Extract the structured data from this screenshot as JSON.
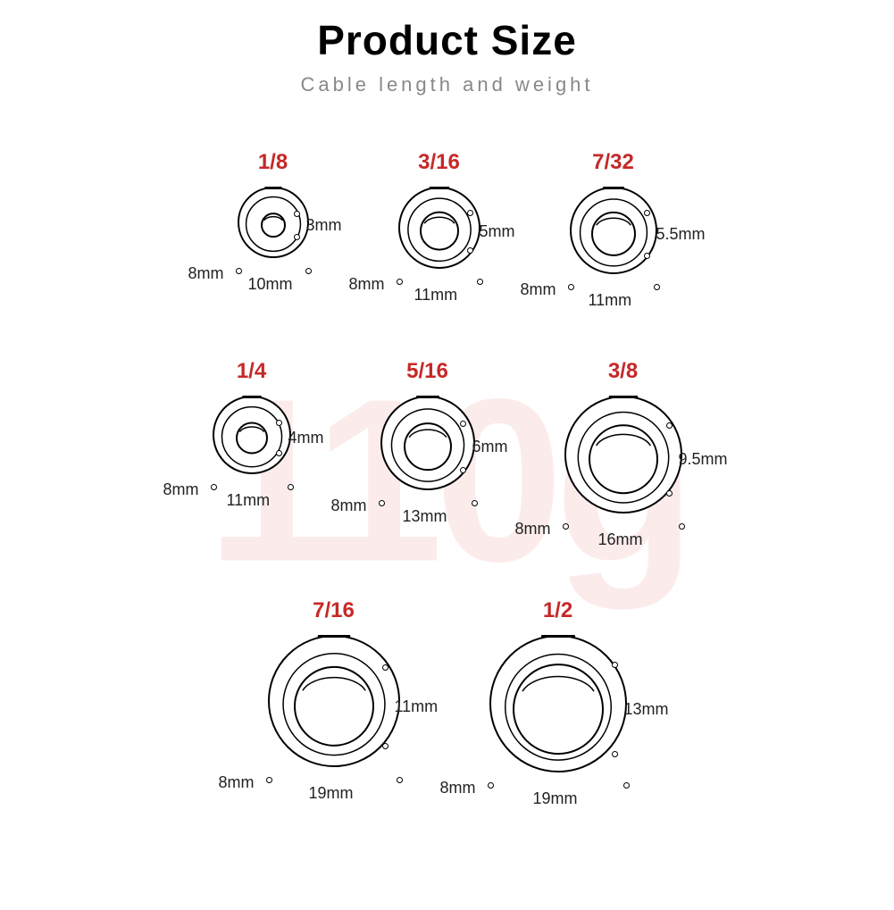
{
  "title": "Product Size",
  "title_fontsize": 46,
  "subtitle": "Cable length and weight",
  "subtitle_fontsize": 22,
  "watermark": "110g",
  "watermark_color": "#fbeceb",
  "label_color": "#c62828",
  "label_fontsize": 24,
  "dim_fontsize": 18,
  "dim_color": "#222222",
  "outline_color": "#000000",
  "background_color": "#ffffff",
  "items": [
    {
      "name": "1/8",
      "outer": 78,
      "inner": 26,
      "hole": "3mm",
      "depth": "8mm",
      "width": "10mm"
    },
    {
      "name": "3/16",
      "outer": 90,
      "inner": 42,
      "hole": "5mm",
      "depth": "8mm",
      "width": "11mm"
    },
    {
      "name": "7/32",
      "outer": 96,
      "inner": 48,
      "hole": "5.5mm",
      "depth": "8mm",
      "width": "11mm"
    },
    {
      "name": "1/4",
      "outer": 86,
      "inner": 34,
      "hole": "4mm",
      "depth": "8mm",
      "width": "11mm"
    },
    {
      "name": "5/16",
      "outer": 104,
      "inner": 52,
      "hole": "6mm",
      "depth": "8mm",
      "width": "13mm"
    },
    {
      "name": "3/8",
      "outer": 130,
      "inner": 76,
      "hole": "9.5mm",
      "depth": "8mm",
      "width": "16mm"
    },
    {
      "name": "7/16",
      "outer": 146,
      "inner": 88,
      "hole": "11mm",
      "depth": "8mm",
      "width": "19mm"
    },
    {
      "name": "1/2",
      "outer": 152,
      "inner": 100,
      "hole": "13mm",
      "depth": "8mm",
      "width": "19mm"
    }
  ],
  "rows": [
    [
      0,
      1,
      2
    ],
    [
      3,
      4,
      5
    ],
    [
      6,
      7
    ]
  ]
}
